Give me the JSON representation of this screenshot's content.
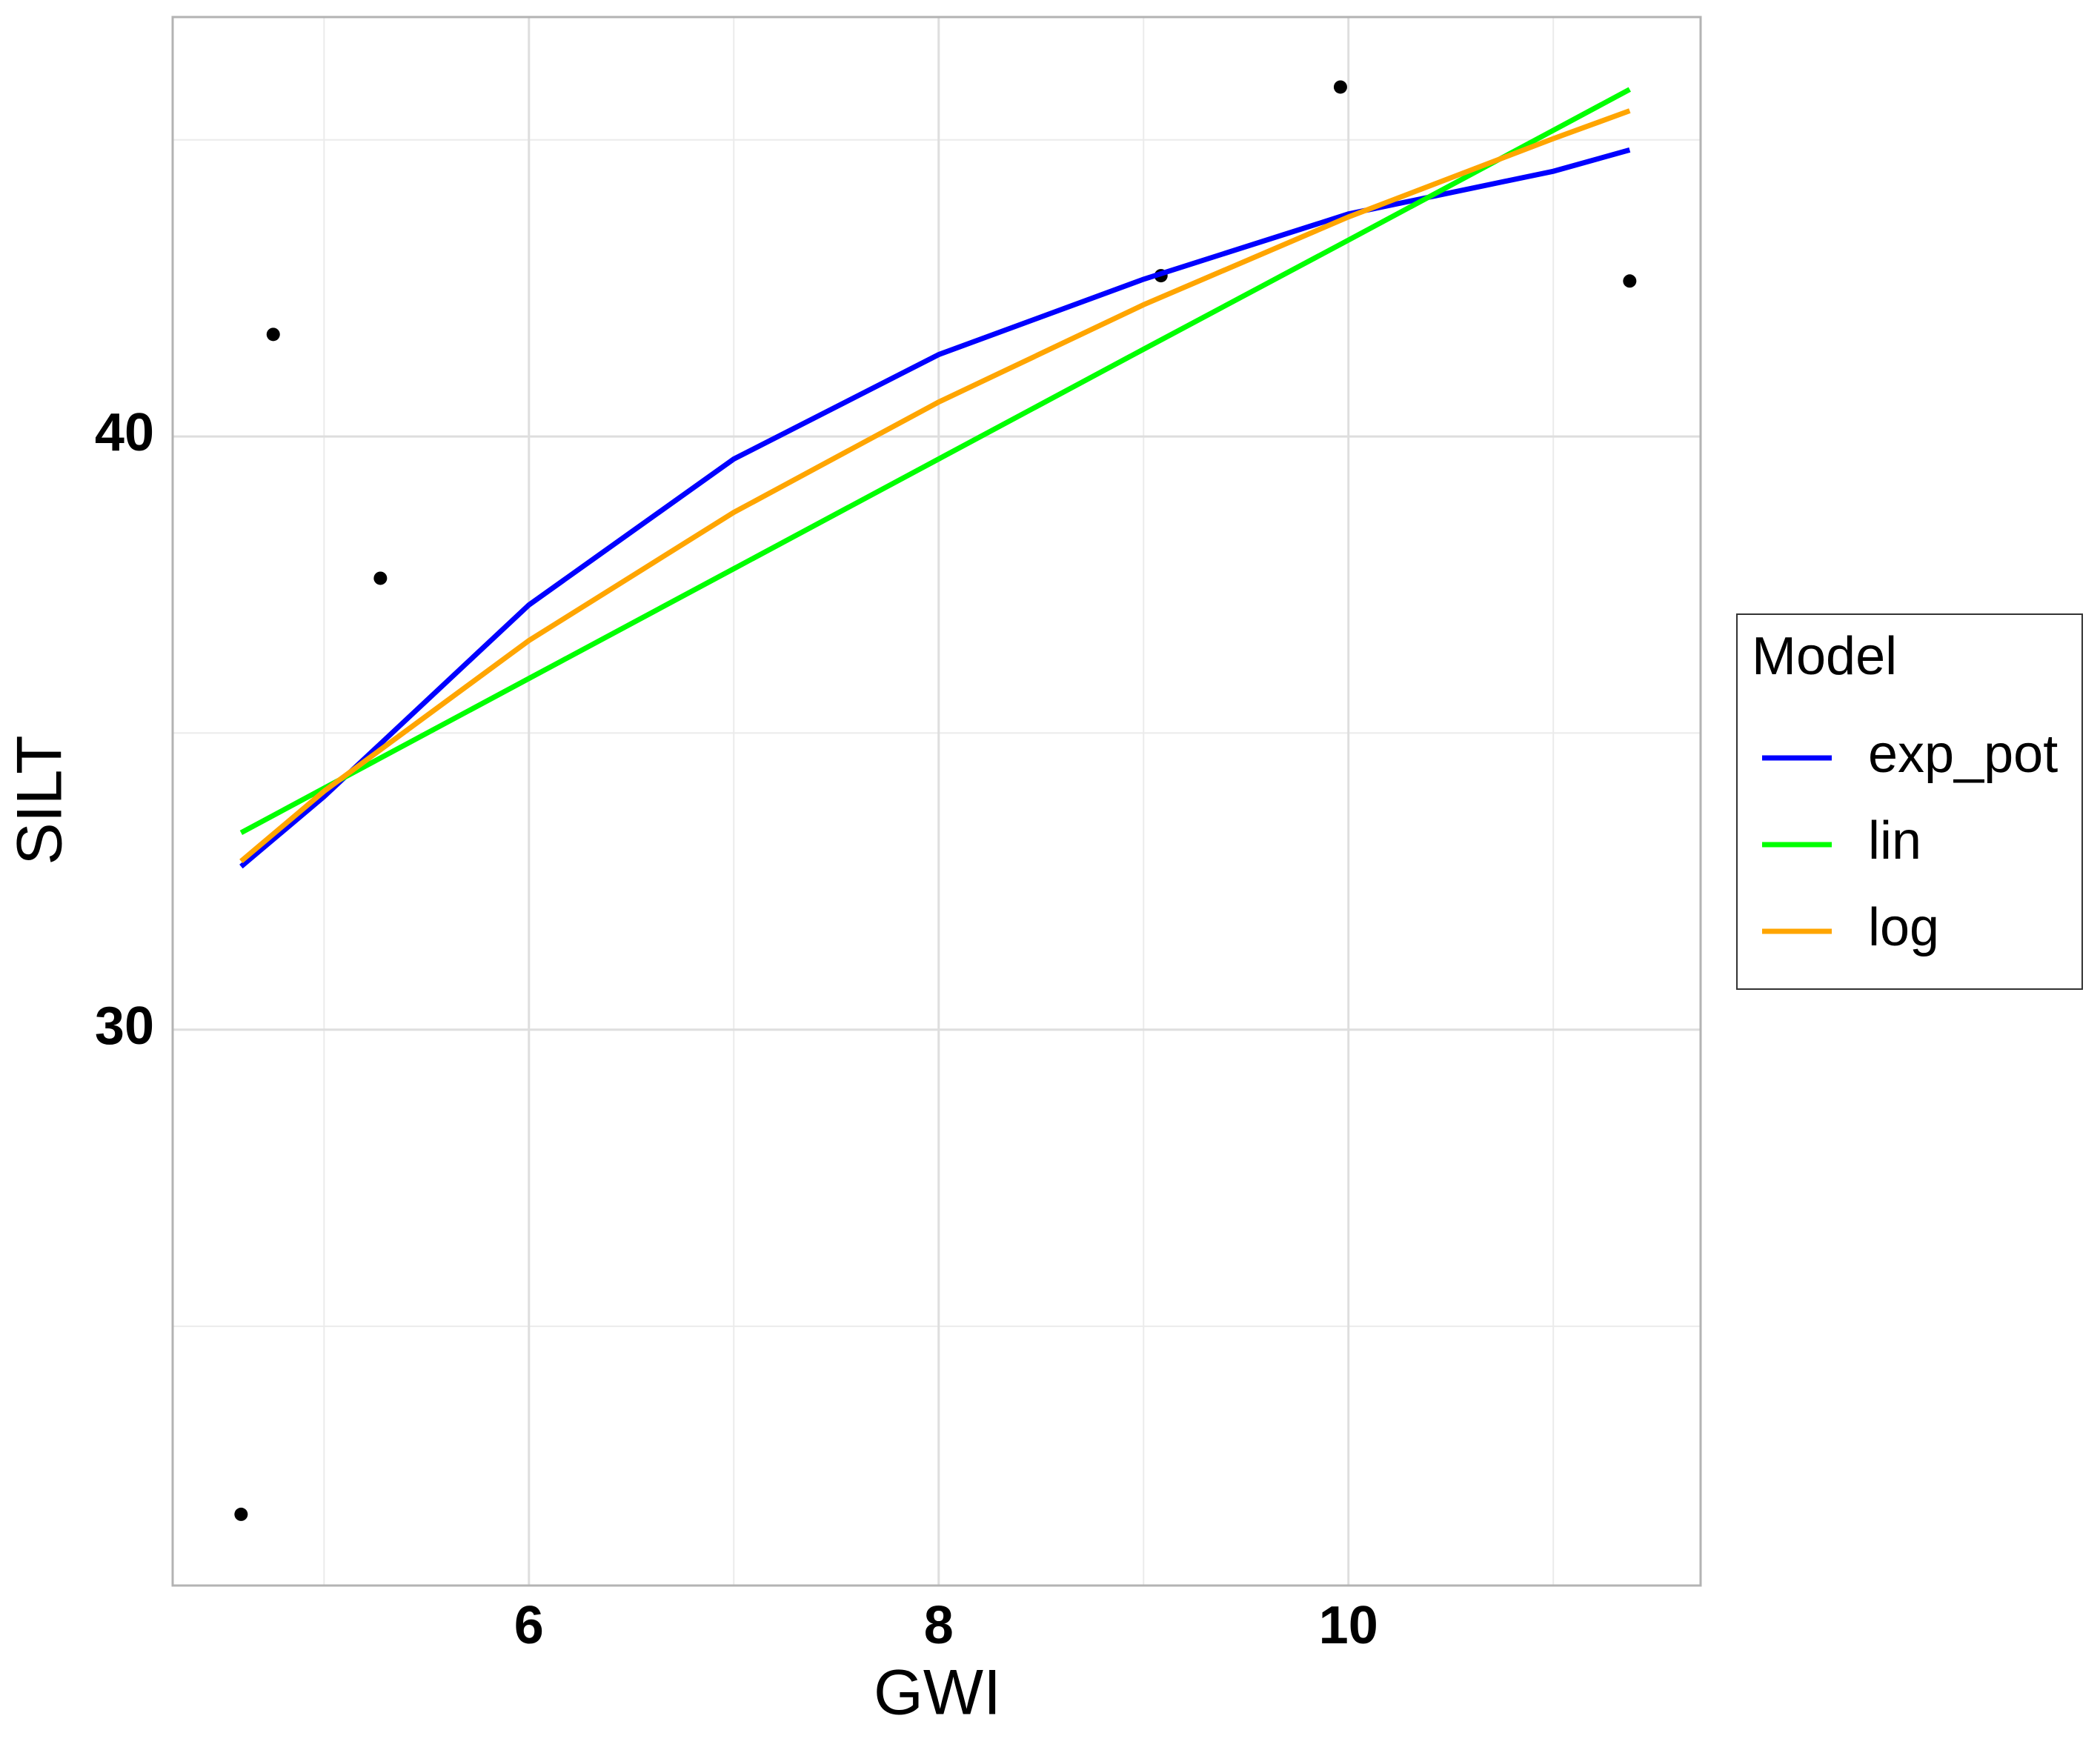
{
  "chart_data": {
    "type": "line",
    "x_label": "GWI",
    "y_label": "SILT",
    "xlim": [
      4.261,
      11.719
    ],
    "ylim": [
      20.63,
      47.07
    ],
    "xticks": [
      6,
      8,
      10
    ],
    "yticks": [
      30,
      40
    ],
    "grid": true,
    "legend_title": "Model",
    "legend_position": "right",
    "scatter": {
      "color": "#000000",
      "x": [
        4.595,
        4.752,
        5.275,
        9.085,
        9.961,
        11.373
      ],
      "y": [
        21.83,
        41.72,
        37.61,
        42.71,
        45.89,
        42.62
      ]
    },
    "series": [
      {
        "name": "exp_pot",
        "color": "#0000ff",
        "x": [
          4.595,
          5,
          6,
          7,
          8,
          9,
          10,
          11,
          11.373
        ],
        "values": [
          32.75,
          33.93,
          37.16,
          39.62,
          41.38,
          42.65,
          43.75,
          44.47,
          44.83
        ]
      },
      {
        "name": "lin",
        "color": "#00ff00",
        "x": [
          4.595,
          5,
          6,
          7,
          8,
          9,
          10,
          11,
          11.373
        ],
        "values": [
          33.32,
          34.07,
          35.92,
          37.77,
          39.62,
          41.47,
          43.31,
          45.16,
          45.85
        ]
      },
      {
        "name": "log",
        "color": "#ffa500",
        "x": [
          4.595,
          5,
          6,
          7,
          8,
          9,
          10,
          11,
          11.373
        ],
        "values": [
          32.84,
          34.02,
          36.56,
          38.72,
          40.58,
          42.22,
          43.7,
          45.02,
          45.49
        ]
      }
    ]
  }
}
